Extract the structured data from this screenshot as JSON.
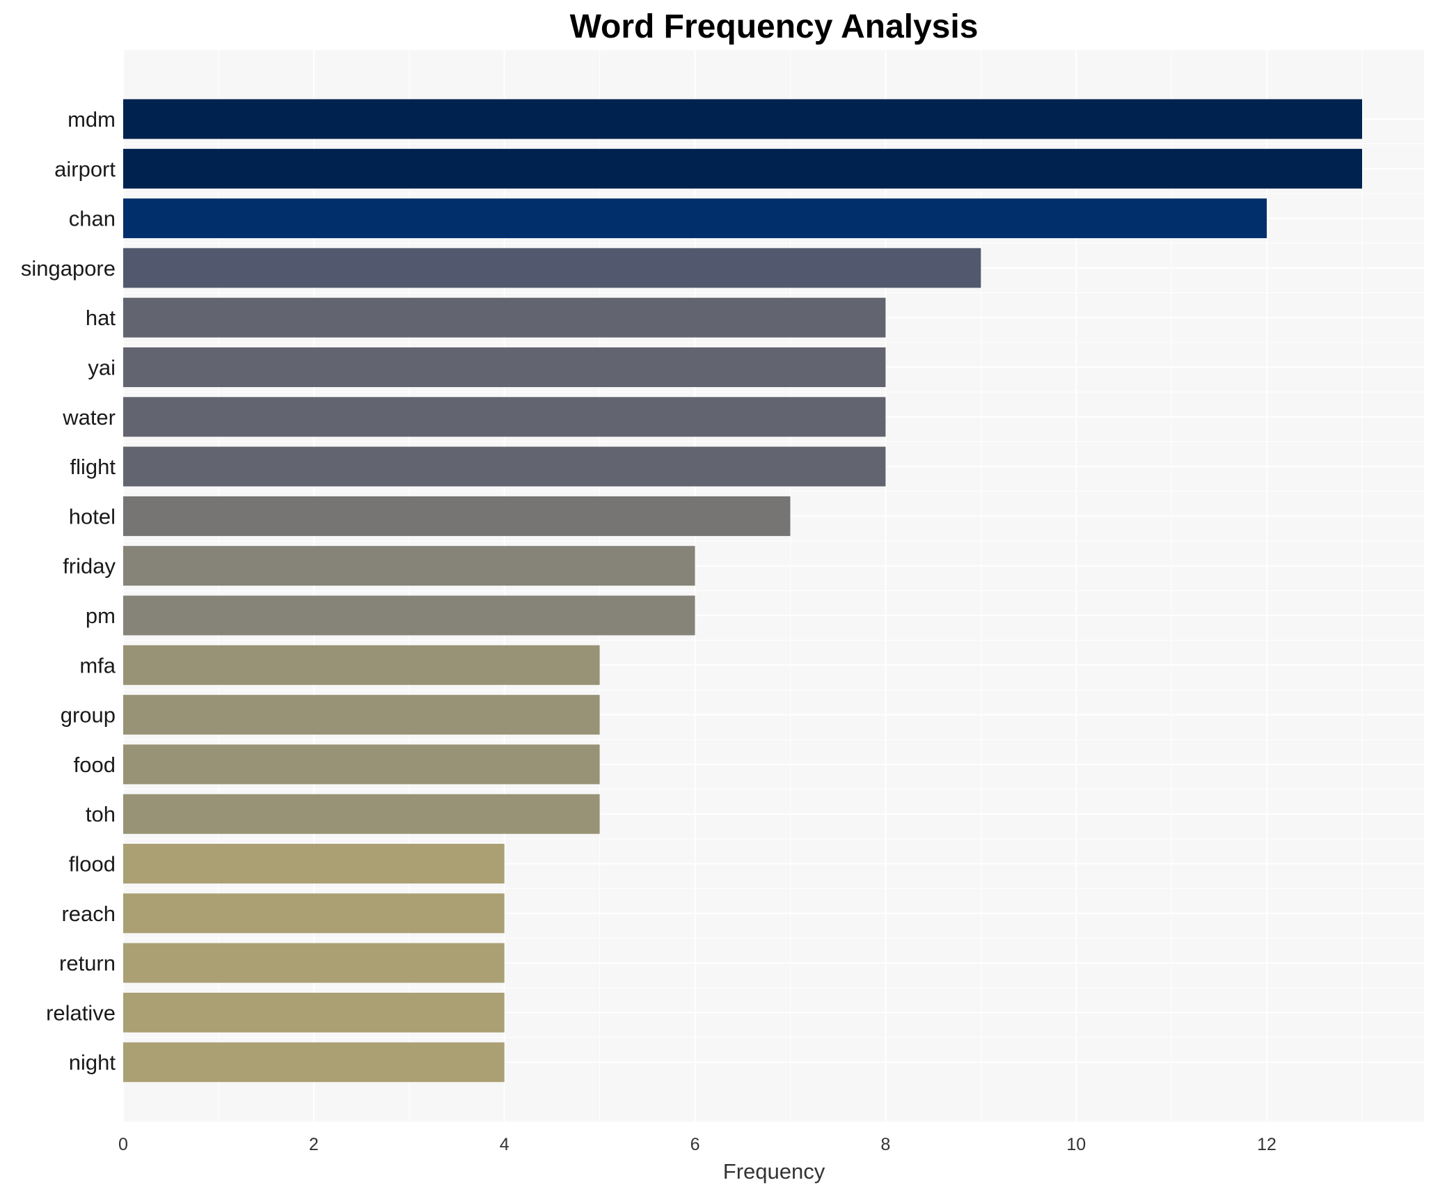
{
  "chart_data": {
    "type": "bar",
    "orientation": "horizontal",
    "title": "Word Frequency Analysis",
    "xlabel": "Frequency",
    "ylabel": "",
    "xlim": [
      0,
      13.65
    ],
    "x_ticks": [
      0,
      2,
      4,
      6,
      8,
      10,
      12
    ],
    "grid": true,
    "categories": [
      "mdm",
      "airport",
      "chan",
      "singapore",
      "hat",
      "yai",
      "water",
      "flight",
      "hotel",
      "friday",
      "pm",
      "mfa",
      "group",
      "food",
      "toh",
      "flood",
      "reach",
      "return",
      "relative",
      "night"
    ],
    "values": [
      13,
      13,
      12,
      9,
      8,
      8,
      8,
      8,
      7,
      6,
      6,
      5,
      5,
      5,
      5,
      4,
      4,
      4,
      4,
      4
    ],
    "colors": [
      "#00224e",
      "#00224e",
      "#002f6c",
      "#52596e",
      "#626570",
      "#626570",
      "#626570",
      "#626570",
      "#767574",
      "#868379",
      "#868379",
      "#989376",
      "#989376",
      "#989376",
      "#989376",
      "#aba074",
      "#aba074",
      "#aba074",
      "#aba074",
      "#aba074"
    ],
    "background_color": "#f7f7f7",
    "grid_color": "#ffffff"
  }
}
